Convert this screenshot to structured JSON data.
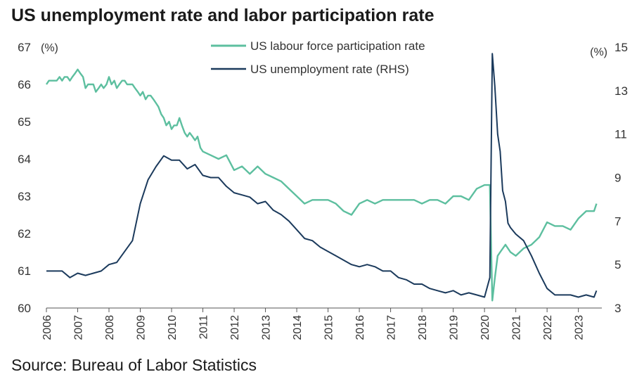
{
  "title": "US unemployment rate and labor participation rate",
  "source": "Source: Bureau of Labor Statistics",
  "colors": {
    "participation": "#5dbf9f",
    "unemployment": "#1b3a5c",
    "axis": "#555555"
  },
  "chart_data": {
    "type": "line",
    "left_unit": "(%)",
    "right_unit": "(%)",
    "ylim_left": [
      60,
      67
    ],
    "ylim_right": [
      3,
      15
    ],
    "xlim": [
      2006,
      2023.75
    ],
    "yticks_left": [
      "60",
      "61",
      "62",
      "63",
      "64",
      "65",
      "66",
      "67"
    ],
    "yticks_right": [
      "3",
      "5",
      "7",
      "9",
      "11",
      "13",
      "15"
    ],
    "xticks": [
      "2006",
      "2007",
      "2008",
      "2009",
      "2010",
      "2011",
      "2012",
      "2013",
      "2014",
      "2015",
      "2016",
      "2017",
      "2018",
      "2019",
      "2020",
      "2021",
      "2022",
      "2023"
    ],
    "legend_position": "top-center",
    "grid": false,
    "series": [
      {
        "name": "US labour force participation rate",
        "axis": "left",
        "color": "#5dbf9f",
        "x": [
          2006.0,
          2006.08,
          2006.17,
          2006.25,
          2006.33,
          2006.42,
          2006.5,
          2006.58,
          2006.67,
          2006.75,
          2006.83,
          2006.92,
          2007.0,
          2007.08,
          2007.17,
          2007.25,
          2007.33,
          2007.42,
          2007.5,
          2007.58,
          2007.67,
          2007.75,
          2007.83,
          2007.92,
          2008.0,
          2008.08,
          2008.17,
          2008.25,
          2008.33,
          2008.42,
          2008.5,
          2008.58,
          2008.67,
          2008.75,
          2008.83,
          2008.92,
          2009.0,
          2009.08,
          2009.17,
          2009.25,
          2009.33,
          2009.42,
          2009.5,
          2009.58,
          2009.67,
          2009.75,
          2009.83,
          2009.92,
          2010.0,
          2010.08,
          2010.17,
          2010.25,
          2010.33,
          2010.42,
          2010.5,
          2010.58,
          2010.67,
          2010.75,
          2010.83,
          2010.92,
          2011.0,
          2011.25,
          2011.5,
          2011.75,
          2012.0,
          2012.25,
          2012.5,
          2012.75,
          2013.0,
          2013.25,
          2013.5,
          2013.75,
          2014.0,
          2014.25,
          2014.5,
          2014.75,
          2015.0,
          2015.25,
          2015.5,
          2015.75,
          2016.0,
          2016.25,
          2016.5,
          2016.75,
          2017.0,
          2017.25,
          2017.5,
          2017.75,
          2018.0,
          2018.25,
          2018.5,
          2018.75,
          2019.0,
          2019.25,
          2019.5,
          2019.75,
          2020.0,
          2020.17,
          2020.25,
          2020.33,
          2020.42,
          2020.5,
          2020.67,
          2020.83,
          2021.0,
          2021.25,
          2021.5,
          2021.75,
          2022.0,
          2022.25,
          2022.5,
          2022.75,
          2023.0,
          2023.25,
          2023.5,
          2023.58
        ],
        "y": [
          66.0,
          66.1,
          66.1,
          66.1,
          66.1,
          66.2,
          66.1,
          66.2,
          66.2,
          66.1,
          66.2,
          66.3,
          66.4,
          66.3,
          66.2,
          65.9,
          66.0,
          66.0,
          66.0,
          65.8,
          65.9,
          66.0,
          65.9,
          66.0,
          66.2,
          66.0,
          66.1,
          65.9,
          66.0,
          66.1,
          66.1,
          66.0,
          66.0,
          66.0,
          65.9,
          65.8,
          65.7,
          65.8,
          65.6,
          65.7,
          65.7,
          65.6,
          65.5,
          65.4,
          65.2,
          65.1,
          64.9,
          65.0,
          64.8,
          64.9,
          64.9,
          65.1,
          64.9,
          64.7,
          64.6,
          64.7,
          64.6,
          64.5,
          64.6,
          64.3,
          64.2,
          64.1,
          64.0,
          64.1,
          63.7,
          63.8,
          63.6,
          63.8,
          63.6,
          63.5,
          63.4,
          63.2,
          63.0,
          62.8,
          62.9,
          62.9,
          62.9,
          62.8,
          62.6,
          62.5,
          62.8,
          62.9,
          62.8,
          62.9,
          62.9,
          62.9,
          62.9,
          62.9,
          62.8,
          62.9,
          62.9,
          62.8,
          63.0,
          63.0,
          62.9,
          63.2,
          63.3,
          63.3,
          60.2,
          60.8,
          61.4,
          61.5,
          61.7,
          61.5,
          61.4,
          61.6,
          61.7,
          61.9,
          62.3,
          62.2,
          62.2,
          62.1,
          62.4,
          62.6,
          62.6,
          62.8
        ]
      },
      {
        "name": "US unemployment rate (RHS)",
        "axis": "right",
        "color": "#1b3a5c",
        "x": [
          2006.0,
          2006.25,
          2006.5,
          2006.75,
          2007.0,
          2007.25,
          2007.5,
          2007.75,
          2008.0,
          2008.25,
          2008.5,
          2008.75,
          2009.0,
          2009.25,
          2009.5,
          2009.75,
          2010.0,
          2010.25,
          2010.5,
          2010.75,
          2011.0,
          2011.25,
          2011.5,
          2011.75,
          2012.0,
          2012.25,
          2012.5,
          2012.75,
          2013.0,
          2013.25,
          2013.5,
          2013.75,
          2014.0,
          2014.25,
          2014.5,
          2014.75,
          2015.0,
          2015.25,
          2015.5,
          2015.75,
          2016.0,
          2016.25,
          2016.5,
          2016.75,
          2017.0,
          2017.25,
          2017.5,
          2017.75,
          2018.0,
          2018.25,
          2018.5,
          2018.75,
          2019.0,
          2019.25,
          2019.5,
          2019.75,
          2020.0,
          2020.17,
          2020.25,
          2020.33,
          2020.42,
          2020.5,
          2020.58,
          2020.67,
          2020.75,
          2020.83,
          2021.0,
          2021.25,
          2021.5,
          2021.75,
          2022.0,
          2022.25,
          2022.5,
          2022.75,
          2023.0,
          2023.25,
          2023.5,
          2023.58
        ],
        "y": [
          4.7,
          4.7,
          4.7,
          4.4,
          4.6,
          4.5,
          4.6,
          4.7,
          5.0,
          5.1,
          5.6,
          6.1,
          7.8,
          8.9,
          9.5,
          10.0,
          9.8,
          9.8,
          9.4,
          9.6,
          9.1,
          9.0,
          9.0,
          8.6,
          8.3,
          8.2,
          8.1,
          7.8,
          7.9,
          7.5,
          7.3,
          7.0,
          6.6,
          6.2,
          6.1,
          5.8,
          5.6,
          5.4,
          5.2,
          5.0,
          4.9,
          5.0,
          4.9,
          4.7,
          4.7,
          4.4,
          4.3,
          4.1,
          4.1,
          3.9,
          3.8,
          3.7,
          3.8,
          3.6,
          3.7,
          3.6,
          3.5,
          4.4,
          14.7,
          13.2,
          11.0,
          10.2,
          8.4,
          7.9,
          6.9,
          6.7,
          6.4,
          6.1,
          5.4,
          4.6,
          3.9,
          3.6,
          3.6,
          3.6,
          3.5,
          3.6,
          3.5,
          3.8
        ]
      }
    ]
  }
}
